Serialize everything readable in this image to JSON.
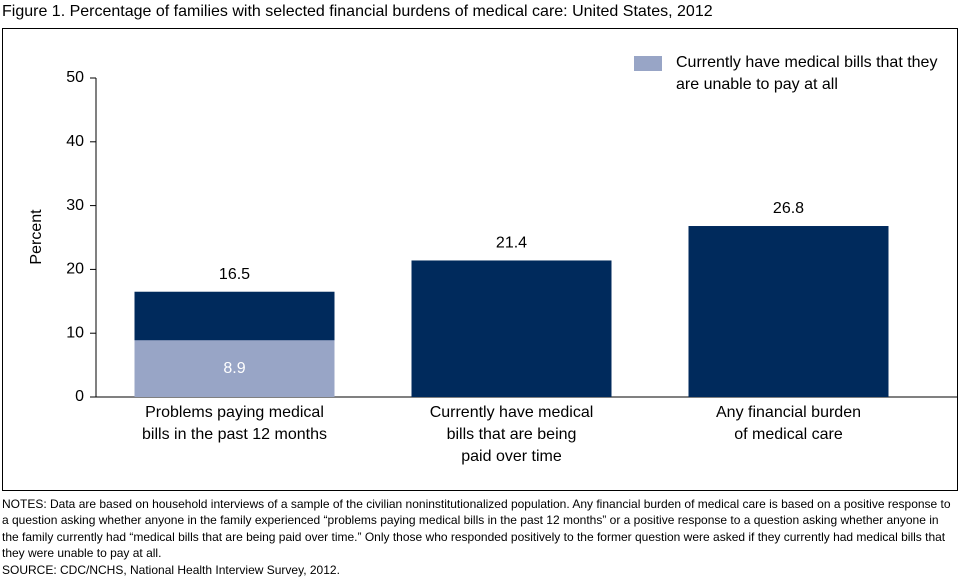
{
  "chart_data": {
    "type": "bar",
    "title": "Figure 1. Percentage of families with selected financial burdens of medical care: United States, 2012",
    "y_label": "Percent",
    "categories": [
      [
        "Problems paying medical",
        "bills in the past 12 months"
      ],
      [
        "Currently have medical",
        "bills that are being",
        "paid over time"
      ],
      [
        "Any financial burden",
        "of medical care"
      ]
    ],
    "series": [
      {
        "color": "#002a5c",
        "values": [
          16.5,
          21.4,
          26.8
        ]
      },
      {
        "name": "Currently have medical bills that they are unable to pay at all",
        "color": "#98a5c6",
        "values": [
          8.9,
          null,
          null
        ]
      }
    ],
    "ylim": [
      0,
      50
    ],
    "yticks": [
      0,
      10,
      20,
      30,
      40,
      50
    ],
    "legend": "top-right",
    "notes": "NOTES: Data are based on household interviews of a sample of the civilian noninstitutionalized population. Any financial burden of medical care is based on a positive response to a question asking whether anyone in the family experienced “problems paying medical bills in the past 12 months” or a positive response to a question asking whether anyone in the family currently had “medical bills that are being paid over time.” Only those who responded positively to the former question were asked if they currently had medical bills that they were unable to pay at all.",
    "source": "SOURCE: CDC/NCHS, National Health Interview Survey, 2012."
  }
}
